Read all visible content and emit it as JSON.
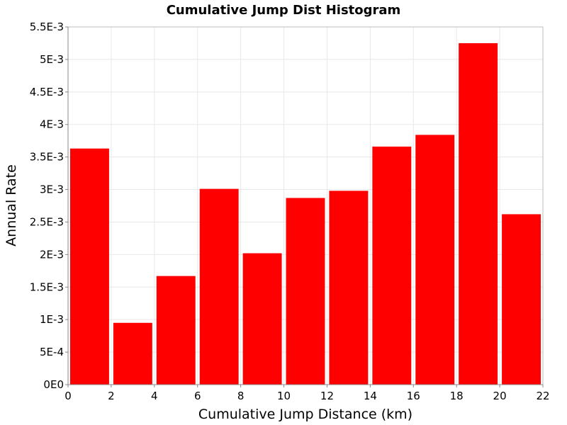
{
  "chart_data": {
    "type": "bar",
    "title": "Cumulative Jump Dist Histogram",
    "xlabel": "Cumulative Jump Distance (km)",
    "ylabel": "Annual Rate",
    "bar_color": "#ff0000",
    "xlim": [
      0,
      22
    ],
    "ylim": [
      0,
      0.0055
    ],
    "x_ticks": [
      0,
      2,
      4,
      6,
      8,
      10,
      12,
      14,
      16,
      18,
      20,
      22
    ],
    "x_tick_labels": [
      "0",
      "2",
      "4",
      "6",
      "8",
      "10",
      "12",
      "14",
      "16",
      "18",
      "20",
      "22"
    ],
    "y_ticks": [
      0,
      0.0005,
      0.001,
      0.0015,
      0.002,
      0.0025,
      0.003,
      0.0035,
      0.004,
      0.0045,
      0.005,
      0.0055
    ],
    "y_tick_labels": [
      "0E0",
      "5E-4",
      "1E-3",
      "1.5E-3",
      "2E-3",
      "2.5E-3",
      "3E-3",
      "3.5E-3",
      "4E-3",
      "4.5E-3",
      "5E-3",
      "5.5E-3"
    ],
    "grid": true,
    "bins": [
      {
        "x0": 0,
        "x1": 2,
        "value": 0.00363
      },
      {
        "x0": 2,
        "x1": 4,
        "value": 0.00095
      },
      {
        "x0": 4,
        "x1": 6,
        "value": 0.00167
      },
      {
        "x0": 6,
        "x1": 8,
        "value": 0.00301
      },
      {
        "x0": 8,
        "x1": 10,
        "value": 0.00202
      },
      {
        "x0": 10,
        "x1": 12,
        "value": 0.00287
      },
      {
        "x0": 12,
        "x1": 14,
        "value": 0.00298
      },
      {
        "x0": 14,
        "x1": 16,
        "value": 0.00366
      },
      {
        "x0": 16,
        "x1": 18,
        "value": 0.00384
      },
      {
        "x0": 18,
        "x1": 20,
        "value": 0.00525
      },
      {
        "x0": 20,
        "x1": 22,
        "value": 0.00262
      }
    ]
  }
}
